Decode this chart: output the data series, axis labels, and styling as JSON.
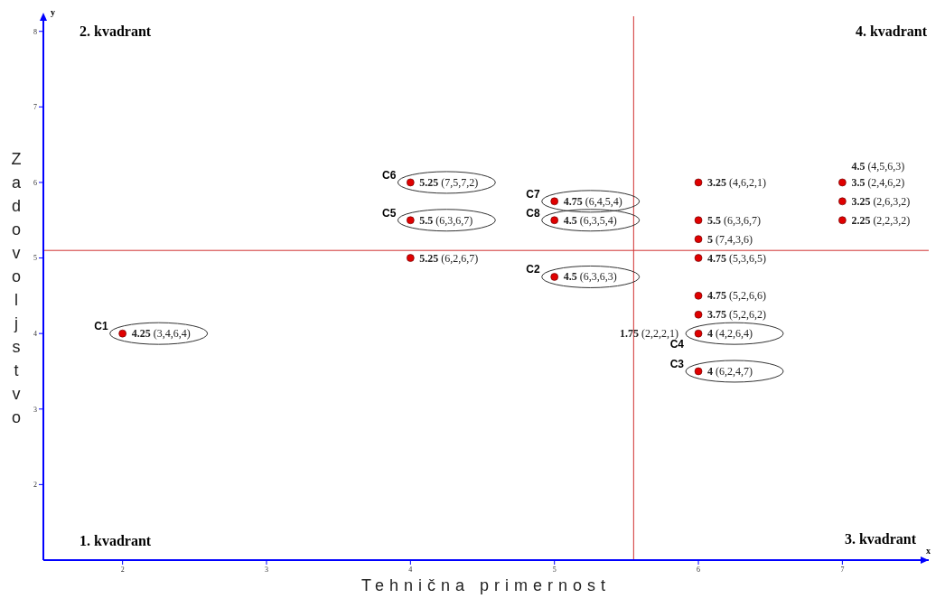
{
  "chart_data": {
    "type": "scatter",
    "xlabel": "Tehnična primernost",
    "ylabel": "Zadovoljstvo",
    "xlim": [
      1.45,
      7.6
    ],
    "ylim": [
      1.0,
      8.2
    ],
    "xticks": [
      2,
      3,
      4,
      5,
      6,
      7
    ],
    "yticks": [
      2,
      3,
      4,
      5,
      6,
      7,
      8
    ],
    "grid": false,
    "legend": false,
    "marker": "circle",
    "series": [
      {
        "name": "C1",
        "color": "#e00000",
        "x": [
          2
        ],
        "values": [
          4
        ]
      },
      {
        "name": "C2",
        "color": "#e00000",
        "x": [
          5
        ],
        "values": [
          4.75
        ]
      },
      {
        "name": "C3",
        "color": "#e00000",
        "x": [
          6
        ],
        "values": [
          3.5
        ]
      },
      {
        "name": "C4",
        "color": "#e00000",
        "x": [
          6
        ],
        "values": [
          4
        ]
      },
      {
        "name": "C5",
        "color": "#e00000",
        "x": [
          4
        ],
        "values": [
          5.5
        ]
      },
      {
        "name": "C6",
        "color": "#e00000",
        "x": [
          4
        ],
        "values": [
          6
        ]
      },
      {
        "name": "C7",
        "color": "#e00000",
        "x": [
          5
        ],
        "values": [
          5.75
        ]
      },
      {
        "name": "C8",
        "color": "#e00000",
        "x": [
          5
        ],
        "values": [
          5.5
        ]
      },
      {
        "color": "#e00000",
        "x": [
          4,
          6,
          6,
          6,
          6,
          6,
          6,
          7,
          7,
          7
        ],
        "values": [
          5,
          6,
          5.5,
          5.25,
          5,
          4.5,
          4.25,
          6,
          5.75,
          5.5
        ]
      }
    ],
    "ref_lines": [
      {
        "axis": "x",
        "value": 5.55,
        "color": "#d03030",
        "line_style": "solid"
      },
      {
        "axis": "y",
        "value": 5.1,
        "color": "#d03030",
        "line_style": "solid"
      }
    ],
    "annotations": [
      "2. kvadrant",
      "4. kvadrant",
      "1. kvadrant",
      "3. kvadrant",
      "x",
      "y",
      {
        "text": "4.25 (3,4,6,4)",
        "x": 2,
        "y": 4
      },
      {
        "text": "5.25 (7,5,7,2)",
        "x": 4,
        "y": 6
      },
      {
        "text": "5.5 (6,3,6,7)",
        "x": 4,
        "y": 5.5
      },
      {
        "text": "5.25 (6,2,6,7)",
        "x": 4,
        "y": 5
      },
      {
        "text": "4.75 (6,4,5,4)",
        "x": 5,
        "y": 5.75
      },
      {
        "text": "4.5 (6,3,5,4)",
        "x": 5,
        "y": 5.5
      },
      {
        "text": "4.5 (6,3,6,3)",
        "x": 5,
        "y": 4.75
      },
      {
        "text": "3.25 (4,6,2,1)",
        "x": 6,
        "y": 6
      },
      {
        "text": "5.5 (6,3,6,7)",
        "x": 6,
        "y": 5.5
      },
      {
        "text": "5 (7,4,3,6)",
        "x": 6,
        "y": 5.25
      },
      {
        "text": "4.75 (5,3,6,5)",
        "x": 6,
        "y": 5
      },
      {
        "text": "4.75 (5,2,6,6)",
        "x": 6,
        "y": 4.5
      },
      {
        "text": "3.75 (5,2,6,2)",
        "x": 6,
        "y": 4.25
      },
      {
        "text": "4 (4,2,6,4)",
        "x": 6,
        "y": 4
      },
      {
        "text": "1.75 (2,2,2,1)",
        "x": 6,
        "y": 4
      },
      {
        "text": "4 (6,2,4,7)",
        "x": 6,
        "y": 3.5
      },
      {
        "text": "4.5 (4,5,6,3)",
        "x": 7,
        "y": 6
      },
      {
        "text": "3.5 (2,4,6,2)",
        "x": 7,
        "y": 6
      },
      {
        "text": "3.25 (2,6,3,2)",
        "x": 7,
        "y": 5.75
      },
      {
        "text": "2.25 (2,2,3,2)",
        "x": 7,
        "y": 5.5
      }
    ]
  }
}
